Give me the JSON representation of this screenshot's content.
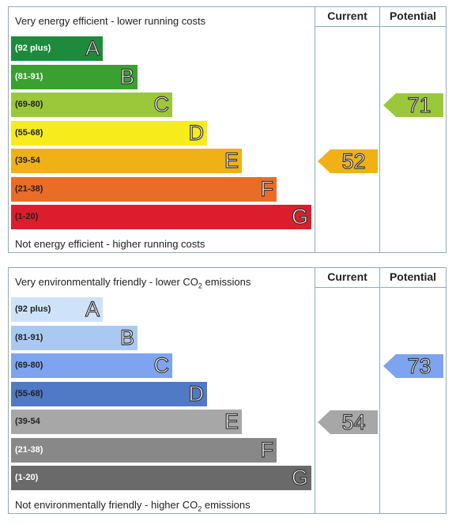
{
  "columns": {
    "current": "Current",
    "potential": "Potential"
  },
  "chart_data": [
    {
      "type": "bar",
      "top_caption": "Very energy efficient - lower running costs",
      "bottom_caption": "Not energy efficient - higher running costs",
      "bands": [
        {
          "letter": "A",
          "range": "(92 plus)",
          "color": "#1e8b3c",
          "text_color": "#ffffff"
        },
        {
          "letter": "B",
          "range": "(81-91)",
          "color": "#3aa02f",
          "text_color": "#ffffff"
        },
        {
          "letter": "C",
          "range": "(69-80)",
          "color": "#9bc83b",
          "text_color": "#222222"
        },
        {
          "letter": "D",
          "range": "(55-68)",
          "color": "#f6ec1d",
          "text_color": "#222222"
        },
        {
          "letter": "E",
          "range": "(39-54",
          "color": "#f0b117",
          "text_color": "#222222"
        },
        {
          "letter": "F",
          "range": "(21-38)",
          "color": "#e96d26",
          "text_color": "#222222"
        },
        {
          "letter": "G",
          "range": "(1-20)",
          "color": "#dc1d2d",
          "text_color": "#222222"
        }
      ],
      "current": {
        "value": "52",
        "band": "E",
        "color": "#f0b117"
      },
      "potential": {
        "value": "71",
        "band": "C",
        "color": "#9bc83b"
      }
    },
    {
      "type": "bar",
      "top_caption_prefix": "Very environmentally friendly - lower CO",
      "top_caption_sub": "2",
      "top_caption_suffix": " emissions",
      "bottom_caption_prefix": "Not environmentally friendly - higher CO",
      "bottom_caption_sub": "2",
      "bottom_caption_suffix": " emissions",
      "bands": [
        {
          "letter": "A",
          "range": "(92 plus)",
          "color": "#cfe3f8",
          "text_color": "#222222"
        },
        {
          "letter": "B",
          "range": "(81-91)",
          "color": "#a9c9f2",
          "text_color": "#222222"
        },
        {
          "letter": "C",
          "range": "(69-80)",
          "color": "#7ea4ef",
          "text_color": "#222222"
        },
        {
          "letter": "D",
          "range": "(55-68)",
          "color": "#5079c6",
          "text_color": "#222222"
        },
        {
          "letter": "E",
          "range": "(39-54",
          "color": "#a7a7a7",
          "text_color": "#222222"
        },
        {
          "letter": "F",
          "range": "(21-38)",
          "color": "#888888",
          "text_color": "#ffffff"
        },
        {
          "letter": "G",
          "range": "(1-20)",
          "color": "#6a6a6a",
          "text_color": "#ffffff"
        }
      ],
      "current": {
        "value": "54",
        "band": "E",
        "color": "#a7a7a7"
      },
      "potential": {
        "value": "73",
        "band": "C",
        "color": "#7ea4ef"
      }
    }
  ]
}
